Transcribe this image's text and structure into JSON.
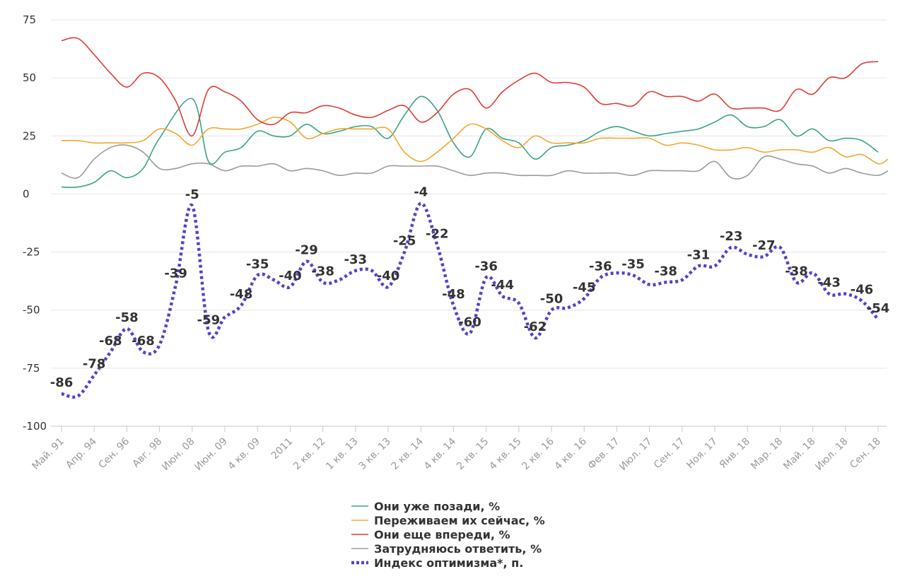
{
  "chart_data": {
    "type": "line",
    "title": "",
    "xlabel": "",
    "ylabel": "",
    "ylim": [
      -100,
      75
    ],
    "yticks": [
      75,
      50,
      25,
      0,
      -25,
      -50,
      -75,
      -100
    ],
    "grid": true,
    "legend_position": "bottom-center",
    "x": [
      "Май. 91",
      "Апр. 94",
      "Сен. 96",
      "Авг. 98",
      "Июн. 08",
      "Июн. 09",
      "4 кв. 09",
      "2011",
      "2 кв. 12",
      "1 кв. 13",
      "3 кв. 13",
      "2 кв. 14",
      "4 кв. 14",
      "2 кв. 15",
      "4 кв. 15",
      "2 кв. 16",
      "4 кв. 16",
      "Фев. 17",
      "Июл. 17",
      "Сен. 17",
      "Ноя. 17",
      "Янв. 18",
      "Мар. 18",
      "Май. 18",
      "Июл. 18",
      "Сен. 18"
    ],
    "series": [
      {
        "name": "Они уже позади, %",
        "color": "#3aa38b",
        "style": "solid",
        "points": [
          [
            0,
            3
          ],
          [
            0.5,
            3
          ],
          [
            1,
            5
          ],
          [
            1.5,
            10
          ],
          [
            2,
            7
          ],
          [
            2.5,
            11
          ],
          [
            3,
            24
          ],
          [
            4,
            41
          ],
          [
            4.5,
            14
          ],
          [
            5,
            18
          ],
          [
            5.5,
            20
          ],
          [
            6,
            27
          ],
          [
            6.5,
            25
          ],
          [
            7,
            25
          ],
          [
            7.5,
            30
          ],
          [
            8,
            26
          ],
          [
            8.5,
            27
          ],
          [
            9,
            29
          ],
          [
            9.5,
            29
          ],
          [
            10,
            24
          ],
          [
            10.5,
            34
          ],
          [
            11,
            42
          ],
          [
            11.5,
            36
          ],
          [
            12,
            22
          ],
          [
            12.5,
            16
          ],
          [
            13,
            28
          ],
          [
            13.5,
            24
          ],
          [
            14,
            22
          ],
          [
            14.5,
            15
          ],
          [
            15,
            20
          ],
          [
            15.5,
            21
          ],
          [
            16,
            23
          ],
          [
            16.5,
            27
          ],
          [
            17,
            29
          ],
          [
            17.5,
            27
          ],
          [
            18,
            25
          ],
          [
            18.5,
            26
          ],
          [
            19,
            27
          ],
          [
            19.5,
            28
          ],
          [
            20,
            31
          ],
          [
            20.5,
            34
          ],
          [
            21,
            29
          ],
          [
            21.5,
            29
          ],
          [
            22,
            32
          ],
          [
            22.5,
            25
          ],
          [
            23,
            28
          ],
          [
            23.5,
            23
          ],
          [
            24,
            24
          ],
          [
            24.5,
            23
          ],
          [
            25,
            18
          ]
        ]
      },
      {
        "name": "Переживаем их сейчас, %",
        "color": "#f0a830",
        "style": "solid",
        "points": [
          [
            0,
            23
          ],
          [
            0.5,
            23
          ],
          [
            1,
            22
          ],
          [
            1.5,
            22
          ],
          [
            2,
            22
          ],
          [
            2.5,
            23
          ],
          [
            3,
            28
          ],
          [
            3.5,
            26
          ],
          [
            4,
            21
          ],
          [
            4.5,
            28
          ],
          [
            5,
            28
          ],
          [
            5.5,
            28
          ],
          [
            6,
            30
          ],
          [
            6.5,
            33
          ],
          [
            7,
            31
          ],
          [
            7.5,
            24
          ],
          [
            8,
            26
          ],
          [
            8.5,
            28
          ],
          [
            9,
            28
          ],
          [
            9.5,
            28
          ],
          [
            10,
            28
          ],
          [
            10.5,
            18
          ],
          [
            11,
            14
          ],
          [
            11.5,
            18
          ],
          [
            12,
            24
          ],
          [
            12.5,
            30
          ],
          [
            13,
            28
          ],
          [
            13.5,
            23
          ],
          [
            14,
            20
          ],
          [
            14.5,
            25
          ],
          [
            15,
            22
          ],
          [
            15.5,
            22
          ],
          [
            16,
            22
          ],
          [
            16.5,
            24
          ],
          [
            17,
            24
          ],
          [
            17.5,
            24
          ],
          [
            18,
            24
          ],
          [
            18.5,
            21
          ],
          [
            19,
            22
          ],
          [
            19.5,
            21
          ],
          [
            20,
            19
          ],
          [
            20.5,
            19
          ],
          [
            21,
            20
          ],
          [
            21.5,
            18
          ],
          [
            22,
            19
          ],
          [
            22.5,
            19
          ],
          [
            23,
            18
          ],
          [
            23.5,
            20
          ],
          [
            24,
            16
          ],
          [
            24.5,
            17
          ],
          [
            25,
            13
          ],
          [
            25.3,
            15
          ]
        ]
      },
      {
        "name": "Они еще впереди, %",
        "color": "#e03c35",
        "style": "solid",
        "points": [
          [
            0,
            66
          ],
          [
            0.5,
            67
          ],
          [
            1,
            60
          ],
          [
            1.5,
            52
          ],
          [
            2,
            46
          ],
          [
            2.5,
            52
          ],
          [
            3,
            50
          ],
          [
            3.5,
            40
          ],
          [
            4,
            25
          ],
          [
            4.5,
            45
          ],
          [
            5,
            44
          ],
          [
            5.5,
            40
          ],
          [
            6,
            32
          ],
          [
            6.5,
            30
          ],
          [
            7,
            35
          ],
          [
            7.5,
            35
          ],
          [
            8,
            38
          ],
          [
            8.5,
            37
          ],
          [
            9,
            34
          ],
          [
            9.5,
            33
          ],
          [
            10,
            36
          ],
          [
            10.5,
            38
          ],
          [
            11,
            31
          ],
          [
            11.5,
            35
          ],
          [
            12,
            43
          ],
          [
            12.5,
            45
          ],
          [
            13,
            37
          ],
          [
            13.5,
            44
          ],
          [
            14,
            49
          ],
          [
            14.5,
            52
          ],
          [
            15,
            48
          ],
          [
            15.5,
            48
          ],
          [
            16,
            46
          ],
          [
            16.5,
            39
          ],
          [
            17,
            39
          ],
          [
            17.5,
            38
          ],
          [
            18,
            44
          ],
          [
            18.5,
            42
          ],
          [
            19,
            42
          ],
          [
            19.5,
            40
          ],
          [
            20,
            43
          ],
          [
            20.5,
            37
          ],
          [
            21,
            37
          ],
          [
            21.5,
            37
          ],
          [
            22,
            36
          ],
          [
            22.5,
            45
          ],
          [
            23,
            43
          ],
          [
            23.5,
            50
          ],
          [
            24,
            50
          ],
          [
            24.5,
            56
          ],
          [
            25,
            57
          ]
        ]
      },
      {
        "name": "Затрудняюсь ответить, %",
        "color": "#9b9b9b",
        "style": "solid",
        "points": [
          [
            0,
            9
          ],
          [
            0.5,
            7
          ],
          [
            1,
            15
          ],
          [
            1.5,
            20
          ],
          [
            2,
            21
          ],
          [
            2.5,
            18
          ],
          [
            3,
            11
          ],
          [
            3.5,
            11
          ],
          [
            4,
            13
          ],
          [
            4.5,
            13
          ],
          [
            5,
            10
          ],
          [
            5.5,
            12
          ],
          [
            6,
            12
          ],
          [
            6.5,
            13
          ],
          [
            7,
            10
          ],
          [
            7.5,
            11
          ],
          [
            8,
            10
          ],
          [
            8.5,
            8
          ],
          [
            9,
            9
          ],
          [
            9.5,
            9
          ],
          [
            10,
            12
          ],
          [
            10.5,
            12
          ],
          [
            11,
            12
          ],
          [
            11.5,
            12
          ],
          [
            12,
            10
          ],
          [
            12.5,
            8
          ],
          [
            13,
            9
          ],
          [
            13.5,
            9
          ],
          [
            14,
            8
          ],
          [
            14.5,
            8
          ],
          [
            15,
            8
          ],
          [
            15.5,
            10
          ],
          [
            16,
            9
          ],
          [
            16.5,
            9
          ],
          [
            17,
            9
          ],
          [
            17.5,
            8
          ],
          [
            18,
            10
          ],
          [
            18.5,
            10
          ],
          [
            19,
            10
          ],
          [
            19.5,
            10
          ],
          [
            20,
            14
          ],
          [
            20.5,
            7
          ],
          [
            21,
            8
          ],
          [
            21.5,
            16
          ],
          [
            22,
            15
          ],
          [
            22.5,
            13
          ],
          [
            23,
            12
          ],
          [
            23.5,
            9
          ],
          [
            24,
            11
          ],
          [
            24.5,
            9
          ],
          [
            25,
            8
          ],
          [
            25.3,
            10
          ]
        ]
      },
      {
        "name": "Индекс оптимизма*, п.",
        "color": "#5a3fc8",
        "style": "dotted",
        "points": [
          [
            0,
            -86
          ],
          [
            0.5,
            -87
          ],
          [
            1,
            -78
          ],
          [
            1.5,
            -68
          ],
          [
            2,
            -58
          ],
          [
            2.5,
            -68
          ],
          [
            3,
            -65
          ],
          [
            3.5,
            -39
          ],
          [
            4,
            -5
          ],
          [
            4.5,
            -59
          ],
          [
            5,
            -53
          ],
          [
            5.5,
            -48
          ],
          [
            6,
            -35
          ],
          [
            6.5,
            -37
          ],
          [
            7,
            -40
          ],
          [
            7.5,
            -29
          ],
          [
            8,
            -38
          ],
          [
            8.5,
            -37
          ],
          [
            9,
            -33
          ],
          [
            9.5,
            -33
          ],
          [
            10,
            -40
          ],
          [
            10.5,
            -25
          ],
          [
            11,
            -4
          ],
          [
            11.5,
            -22
          ],
          [
            12,
            -48
          ],
          [
            12.5,
            -60
          ],
          [
            13,
            -36
          ],
          [
            13.5,
            -44
          ],
          [
            14,
            -47
          ],
          [
            14.5,
            -62
          ],
          [
            15,
            -50
          ],
          [
            15.5,
            -49
          ],
          [
            16,
            -45
          ],
          [
            16.5,
            -36
          ],
          [
            17,
            -34
          ],
          [
            17.5,
            -35
          ],
          [
            18,
            -39
          ],
          [
            18.5,
            -38
          ],
          [
            19,
            -37
          ],
          [
            19.5,
            -31
          ],
          [
            20,
            -31
          ],
          [
            20.5,
            -23
          ],
          [
            21,
            -26
          ],
          [
            21.5,
            -27
          ],
          [
            22,
            -23
          ],
          [
            22.5,
            -38
          ],
          [
            23,
            -34
          ],
          [
            23.5,
            -43
          ],
          [
            24,
            -43
          ],
          [
            24.5,
            -46
          ],
          [
            25,
            -54
          ]
        ]
      }
    ],
    "data_labels": [
      {
        "x": 0,
        "y": -86,
        "text": "-86"
      },
      {
        "x": 1,
        "y": -78,
        "text": "-78"
      },
      {
        "x": 1.5,
        "y": -68,
        "text": "-68"
      },
      {
        "x": 2,
        "y": -58,
        "text": "-58"
      },
      {
        "x": 2.5,
        "y": -68,
        "text": "-68"
      },
      {
        "x": 3.5,
        "y": -39,
        "text": "-39"
      },
      {
        "x": 4,
        "y": -5,
        "text": "-5"
      },
      {
        "x": 4.5,
        "y": -59,
        "text": "-59"
      },
      {
        "x": 5.5,
        "y": -48,
        "text": "-48"
      },
      {
        "x": 6,
        "y": -35,
        "text": "-35"
      },
      {
        "x": 7,
        "y": -40,
        "text": "-40"
      },
      {
        "x": 7.5,
        "y": -29,
        "text": "-29"
      },
      {
        "x": 8,
        "y": -38,
        "text": "-38"
      },
      {
        "x": 9,
        "y": -33,
        "text": "-33"
      },
      {
        "x": 10,
        "y": -40,
        "text": "-40"
      },
      {
        "x": 10.5,
        "y": -25,
        "text": "-25"
      },
      {
        "x": 11,
        "y": -4,
        "text": "-4"
      },
      {
        "x": 11.5,
        "y": -22,
        "text": "-22"
      },
      {
        "x": 12,
        "y": -48,
        "text": "-48"
      },
      {
        "x": 12.5,
        "y": -60,
        "text": "-60"
      },
      {
        "x": 13,
        "y": -36,
        "text": "-36"
      },
      {
        "x": 13.5,
        "y": -44,
        "text": "-44"
      },
      {
        "x": 14.5,
        "y": -62,
        "text": "-62"
      },
      {
        "x": 15,
        "y": -50,
        "text": "-50"
      },
      {
        "x": 16,
        "y": -45,
        "text": "-45"
      },
      {
        "x": 16.5,
        "y": -36,
        "text": "-36"
      },
      {
        "x": 17.5,
        "y": -35,
        "text": "-35"
      },
      {
        "x": 18.5,
        "y": -38,
        "text": "-38"
      },
      {
        "x": 19.5,
        "y": -31,
        "text": "-31"
      },
      {
        "x": 20.5,
        "y": -23,
        "text": "-23"
      },
      {
        "x": 21.5,
        "y": -27,
        "text": "-27"
      },
      {
        "x": 22.5,
        "y": -38,
        "text": "-38"
      },
      {
        "x": 23.5,
        "y": -43,
        "text": "-43"
      },
      {
        "x": 24.5,
        "y": -46,
        "text": "-46"
      },
      {
        "x": 25,
        "y": -54,
        "text": "-54"
      }
    ]
  }
}
